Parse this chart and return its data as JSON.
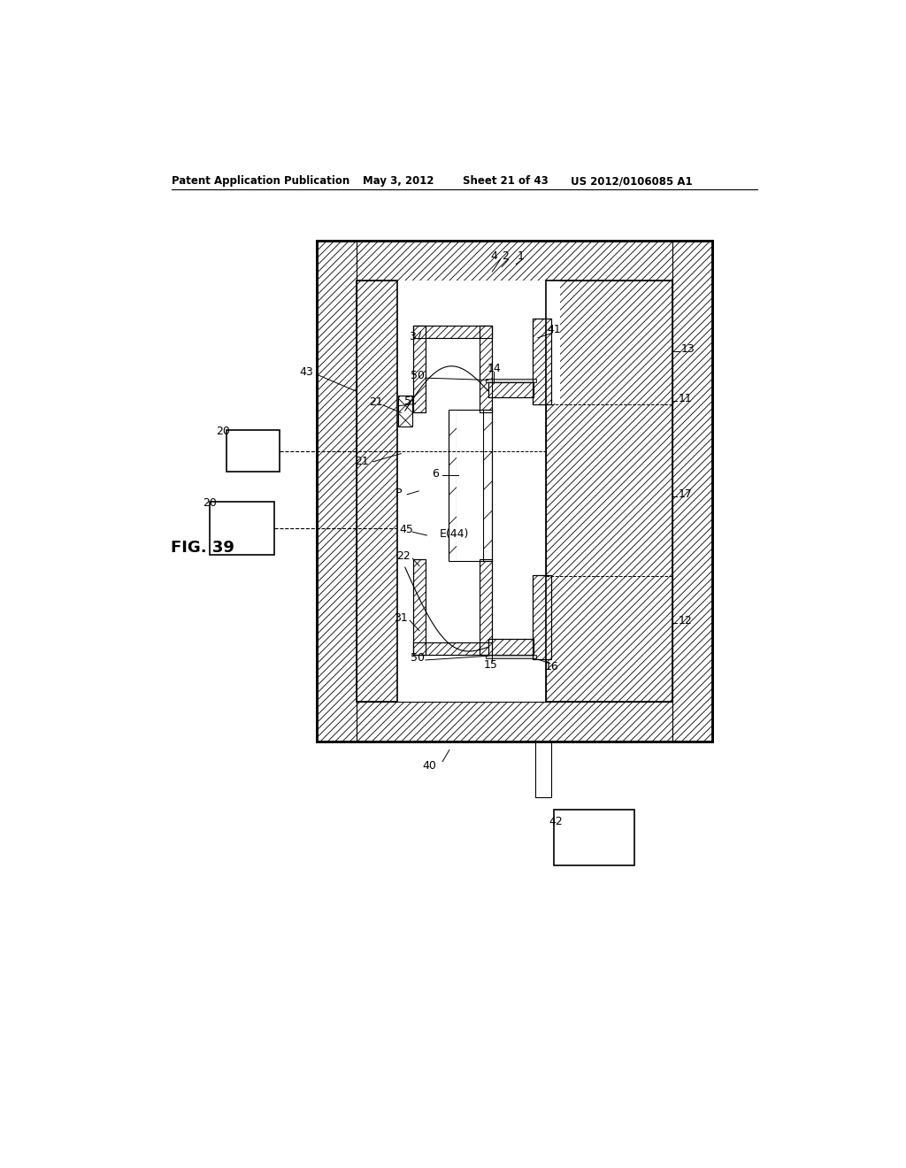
{
  "header_left": "Patent Application Publication",
  "header_mid": "May 3, 2012",
  "header_right1": "Sheet 21 of 43",
  "header_right2": "US 2012/0106085 A1",
  "fig_label": "FIG. 39",
  "bg": "#ffffff"
}
